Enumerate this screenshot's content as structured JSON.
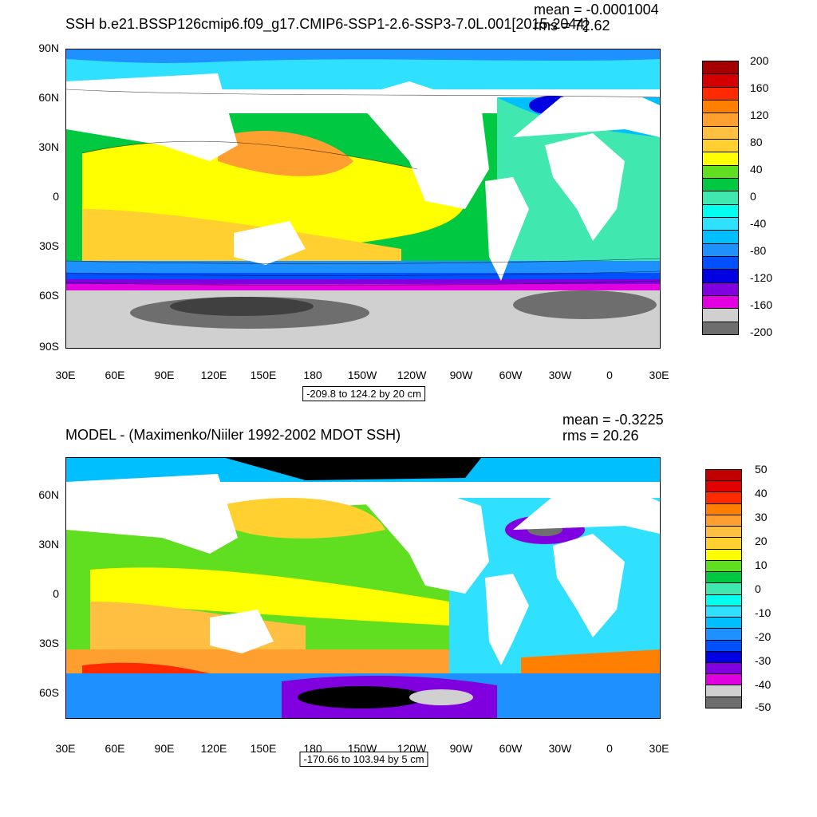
{
  "panel1": {
    "title": "SSH b.e21.BSSP126cmip6.f09_g17.CMIP6-SSP1-2.6-SSP3-7.0L.001[2015-2044]",
    "stat_mean": "mean = -0.0001004",
    "stat_rms": "rms = 72.62",
    "contour_info": "-209.8 to 124.2 by 20 cm",
    "lat_labels": [
      "90N",
      "60N",
      "30N",
      "0",
      "30S",
      "60S",
      "90S"
    ],
    "lon_labels": [
      "30E",
      "60E",
      "90E",
      "120E",
      "150E",
      "180",
      "150W",
      "120W",
      "90W",
      "60W",
      "30W",
      "0",
      "30E"
    ],
    "colorbar_labels": [
      "200",
      "160",
      "120",
      "80",
      "40",
      "0",
      "-40",
      "-80",
      "-120",
      "-160",
      "-200"
    ],
    "colorbar_colors": [
      "#a50000",
      "#d40000",
      "#ff2a00",
      "#ff7f00",
      "#ff9f30",
      "#ffbf40",
      "#ffd030",
      "#ffff00",
      "#5fdf1f",
      "#00c840",
      "#40e8b0",
      "#00ffef",
      "#30e0ff",
      "#00bfff",
      "#1e90ff",
      "#0050ff",
      "#0000e0",
      "#8000e0",
      "#e000e0",
      "#d0d0d0",
      "#6e6e6e"
    ],
    "colorbar_range": [
      -200,
      200
    ]
  },
  "panel2": {
    "title": "MODEL - (Maximenko/Niiler 1992-2002 MDOT SSH)",
    "stat_mean": "mean = -0.3225",
    "stat_rms": "rms = 20.26",
    "contour_info": "-170.66 to 103.94 by 5 cm",
    "lat_labels": [
      "60N",
      "30N",
      "0",
      "30S",
      "60S"
    ],
    "lon_labels": [
      "30E",
      "60E",
      "90E",
      "120E",
      "150E",
      "180",
      "150W",
      "120W",
      "90W",
      "60W",
      "30W",
      "0",
      "30E"
    ],
    "colorbar_labels": [
      "50",
      "40",
      "30",
      "20",
      "10",
      "0",
      "-10",
      "-20",
      "-30",
      "-40",
      "-50"
    ],
    "colorbar_colors": [
      "#c00000",
      "#e00000",
      "#ff2a00",
      "#ff7f00",
      "#ff9f30",
      "#ffbf40",
      "#ffd030",
      "#ffff00",
      "#5fdf1f",
      "#00c840",
      "#40e8b0",
      "#00ffef",
      "#30e0ff",
      "#00bfff",
      "#1e90ff",
      "#0050ff",
      "#0000e0",
      "#8000e0",
      "#e000e0",
      "#d0d0d0",
      "#6e6e6e"
    ],
    "colorbar_range": [
      -50,
      50
    ]
  }
}
